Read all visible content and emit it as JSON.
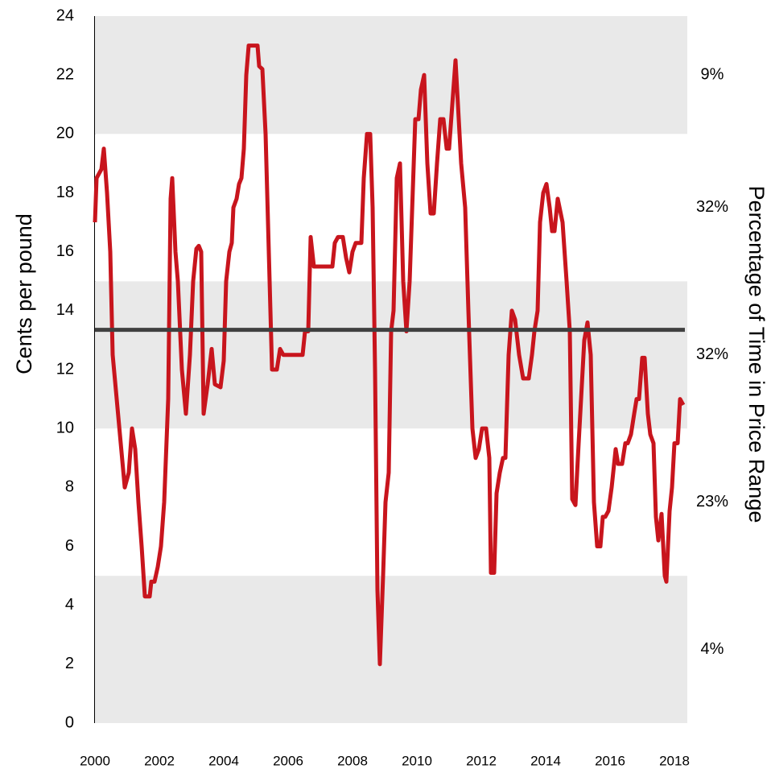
{
  "chart_data": {
    "type": "line",
    "y_label": "Cents per pound",
    "y2_label": "Percentage of Time in Price Range",
    "xlim": [
      2000,
      2018.4
    ],
    "xticks": [
      2000,
      2002,
      2004,
      2006,
      2008,
      2010,
      2012,
      2014,
      2016,
      2018
    ],
    "ylim": [
      0,
      24
    ],
    "yticks": [
      0,
      2,
      4,
      6,
      8,
      10,
      12,
      14,
      16,
      18,
      20,
      22,
      24
    ],
    "ranges": {
      "bounds": [
        [
          0,
          5
        ],
        [
          5,
          10
        ],
        [
          10,
          15
        ],
        [
          15,
          20
        ],
        [
          20,
          24
        ]
      ],
      "colors": [
        "#e9e9e9",
        "#ffffff",
        "#e9e9e9",
        "#ffffff",
        "#e9e9e9"
      ],
      "values": [
        4,
        23,
        32,
        32,
        9
      ],
      "value_labels": [
        "4%",
        "23%",
        "32%",
        "32%",
        "9%"
      ]
    },
    "reference_line": {
      "value": 13.35,
      "color": "#404040"
    },
    "series": [
      {
        "color": "#c8151d",
        "x": [
          2000.0,
          2000.05,
          2000.2,
          2000.275,
          2000.375,
          2000.475,
          2000.55,
          2000.675,
          2000.8,
          2000.925,
          2001.05,
          2001.15,
          2001.25,
          2001.35,
          2001.45,
          2001.55,
          2001.7,
          2001.75,
          2001.85,
          2001.95,
          2002.05,
          2002.15,
          2002.275,
          2002.35,
          2002.4,
          2002.5,
          2002.575,
          2002.7,
          2002.825,
          2002.95,
          2003.05,
          2003.15,
          2003.225,
          2003.3,
          2003.375,
          2003.5,
          2003.625,
          2003.725,
          2003.9,
          2004.0,
          2004.075,
          2004.175,
          2004.25,
          2004.3,
          2004.4,
          2004.475,
          2004.55,
          2004.625,
          2004.7,
          2004.775,
          2005.05,
          2005.1,
          2005.2,
          2005.3,
          2005.425,
          2005.5,
          2005.65,
          2005.75,
          2005.85,
          2006.45,
          2006.525,
          2006.625,
          2006.7,
          2006.8,
          2007.375,
          2007.45,
          2007.55,
          2007.7,
          2007.8,
          2007.9,
          2008.0,
          2008.1,
          2008.275,
          2008.35,
          2008.45,
          2008.55,
          2008.625,
          2008.7,
          2008.775,
          2008.85,
          2008.95,
          2009.025,
          2009.125,
          2009.2,
          2009.275,
          2009.375,
          2009.475,
          2009.575,
          2009.675,
          2009.775,
          2009.95,
          2010.05,
          2010.125,
          2010.225,
          2010.325,
          2010.425,
          2010.525,
          2010.625,
          2010.725,
          2010.825,
          2010.925,
          2011.0,
          2011.1,
          2011.2,
          2011.275,
          2011.375,
          2011.5,
          2011.6,
          2011.725,
          2011.825,
          2011.925,
          2012.025,
          2012.15,
          2012.25,
          2012.3,
          2012.4,
          2012.475,
          2012.575,
          2012.675,
          2012.75,
          2012.85,
          2012.95,
          2013.05,
          2013.175,
          2013.3,
          2013.475,
          2013.575,
          2013.65,
          2013.75,
          2013.825,
          2013.925,
          2014.025,
          2014.125,
          2014.2,
          2014.275,
          2014.375,
          2014.525,
          2014.65,
          2014.75,
          2014.825,
          2014.925,
          2015.025,
          2015.1,
          2015.2,
          2015.3,
          2015.4,
          2015.5,
          2015.6,
          2015.7,
          2015.775,
          2015.85,
          2015.95,
          2016.05,
          2016.175,
          2016.25,
          2016.375,
          2016.475,
          2016.55,
          2016.65,
          2016.75,
          2016.825,
          2016.9,
          2017.0,
          2017.075,
          2017.175,
          2017.25,
          2017.35,
          2017.425,
          2017.5,
          2017.6,
          2017.7,
          2017.75,
          2017.85,
          2017.925,
          2018.0,
          2018.1,
          2018.175,
          2018.275
        ],
        "values": [
          17,
          18.5,
          18.8,
          19.5,
          18,
          16,
          12.5,
          11,
          9.5,
          8,
          8.5,
          10,
          9.3,
          7.5,
          6,
          4.3,
          4.3,
          4.8,
          4.8,
          5.3,
          6,
          7.5,
          11,
          17.8,
          18.5,
          16,
          15,
          12,
          10.5,
          12.5,
          15,
          16.1,
          16.2,
          16,
          10.5,
          11.5,
          12.7,
          11.5,
          11.4,
          12.3,
          15,
          16,
          16.3,
          17.5,
          17.8,
          18.3,
          18.5,
          19.5,
          22,
          23,
          23,
          22.3,
          22.2,
          20,
          15,
          12,
          12,
          12.7,
          12.5,
          12.5,
          13.3,
          13.3,
          16.5,
          15.5,
          15.5,
          16.3,
          16.5,
          16.5,
          15.8,
          15.3,
          16,
          16.3,
          16.3,
          18.5,
          20,
          20,
          17.5,
          12,
          4.5,
          2,
          5,
          7.5,
          8.5,
          13.3,
          14,
          18.5,
          19,
          15,
          13.3,
          15,
          20.5,
          20.5,
          21.5,
          22,
          19,
          17.3,
          17.3,
          19,
          20.5,
          20.5,
          19.5,
          19.5,
          21,
          22.5,
          21,
          19,
          17.5,
          14,
          10,
          9,
          9.3,
          10,
          10,
          9,
          5.1,
          5.1,
          7.8,
          8.5,
          9,
          9,
          12.5,
          14,
          13.7,
          12.5,
          11.7,
          11.7,
          12.5,
          13.3,
          14,
          17,
          18,
          18.3,
          17.5,
          16.7,
          16.7,
          17.8,
          17,
          15,
          13.3,
          7.6,
          7.4,
          9.5,
          11,
          13,
          13.6,
          12.5,
          7.5,
          6,
          6,
          7,
          7,
          7.2,
          8,
          9.3,
          8.8,
          8.8,
          9.5,
          9.5,
          9.8,
          10.5,
          11,
          11,
          12.4,
          12.4,
          10.5,
          9.8,
          9.5,
          7,
          6.2,
          7.1,
          5,
          4.8,
          7.2,
          8,
          9.5,
          9.5,
          11,
          10.8
        ]
      }
    ]
  }
}
